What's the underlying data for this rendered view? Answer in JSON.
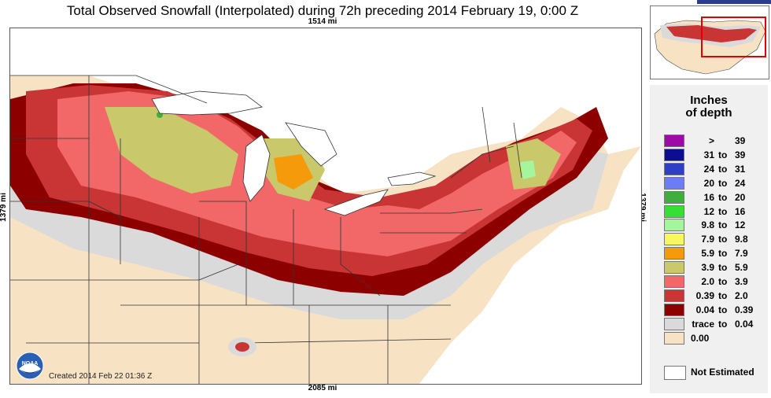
{
  "title": "Total Observed Snowfall (Interpolated) during 72h preceding 2014 February 19, 0:00 Z",
  "distances": {
    "top": "1514 mi",
    "bottom": "2085 mi",
    "left": "1379 mi",
    "right": "1379 mi"
  },
  "created": "Created 2014 Feb 22 01:36 Z",
  "logo_text": "NOAA",
  "legend": {
    "title_line1": "Inches",
    "title_line2": "of depth",
    "rows": [
      {
        "lo": ">",
        "to": "",
        "hi": "39",
        "color": "#9d0aa8"
      },
      {
        "lo": "31",
        "to": "to",
        "hi": "39",
        "color": "#0d0d93"
      },
      {
        "lo": "24",
        "to": "to",
        "hi": "31",
        "color": "#2f3ec7"
      },
      {
        "lo": "20",
        "to": "to",
        "hi": "24",
        "color": "#6c7cf5"
      },
      {
        "lo": "16",
        "to": "to",
        "hi": "20",
        "color": "#3fae3f"
      },
      {
        "lo": "12",
        "to": "to",
        "hi": "16",
        "color": "#34e034"
      },
      {
        "lo": "9.8",
        "to": "to",
        "hi": "12",
        "color": "#a4f59c"
      },
      {
        "lo": "7.9",
        "to": "to",
        "hi": "9.8",
        "color": "#f7f75e"
      },
      {
        "lo": "5.9",
        "to": "to",
        "hi": "7.9",
        "color": "#f59a0a"
      },
      {
        "lo": "3.9",
        "to": "to",
        "hi": "5.9",
        "color": "#c9c86a"
      },
      {
        "lo": "2.0",
        "to": "to",
        "hi": "3.9",
        "color": "#f26767"
      },
      {
        "lo": "0.39",
        "to": "to",
        "hi": "2.0",
        "color": "#c93434"
      },
      {
        "lo": "0.04",
        "to": "to",
        "hi": "0.39",
        "color": "#8c0000"
      },
      {
        "lo": "trace",
        "to": "to",
        "hi": "0.04",
        "color": "#dadada"
      },
      {
        "lo": "0.00",
        "to": "",
        "hi": "",
        "color": "#f7e2c4"
      }
    ],
    "not_estimated": "Not Estimated"
  }
}
